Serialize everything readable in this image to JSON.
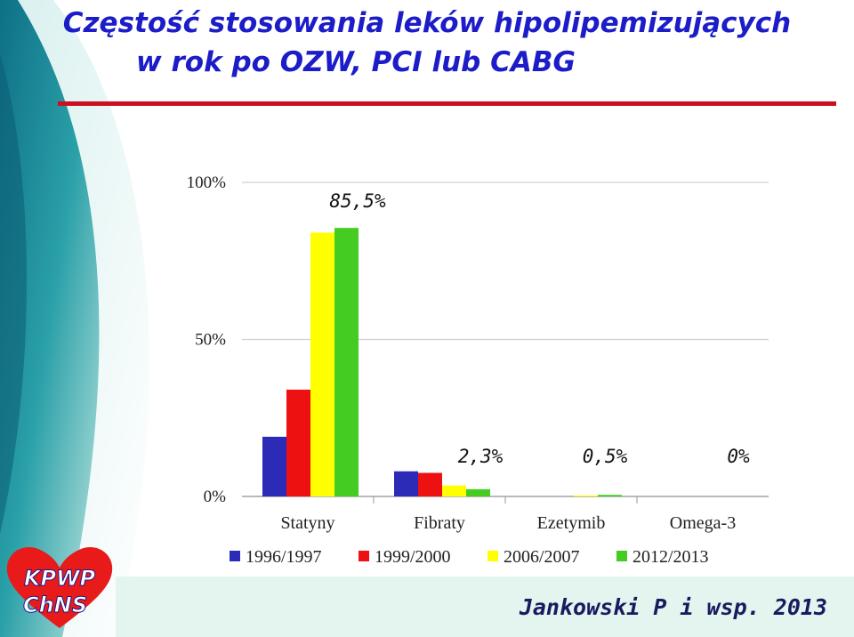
{
  "slide": {
    "title_line1": "Częstość stosowania leków hipolipemizujących",
    "title_line2": "w rok po OZW, PCI lub CABG",
    "author": "Jankowski P i wsp. 2013",
    "logo_text": "KPWP ChNS",
    "accent_color": "#cc1020",
    "title_color": "#1c1cc8"
  },
  "chart_data": {
    "type": "bar",
    "categories": [
      "Statyny",
      "Fibraty",
      "Ezetymib",
      "Omega-3"
    ],
    "series": [
      {
        "name": "1996/1997",
        "color": "#2b2bb8",
        "values": [
          19,
          8,
          0,
          0
        ]
      },
      {
        "name": "1999/2000",
        "color": "#ee1111",
        "values": [
          34,
          7.5,
          0,
          0
        ]
      },
      {
        "name": "2006/2007",
        "color": "#ffff00",
        "values": [
          84,
          3.5,
          0.3,
          0
        ]
      },
      {
        "name": "2012/2013",
        "color": "#44cc22",
        "values": [
          85.5,
          2.3,
          0.5,
          0
        ]
      }
    ],
    "yticks": [
      "0%",
      "50%",
      "100%"
    ],
    "ylim": [
      0,
      100
    ],
    "annotations": [
      "85,5%",
      "2,3%",
      "0,5%",
      "0%"
    ],
    "grid": true,
    "legend_position": "bottom"
  }
}
